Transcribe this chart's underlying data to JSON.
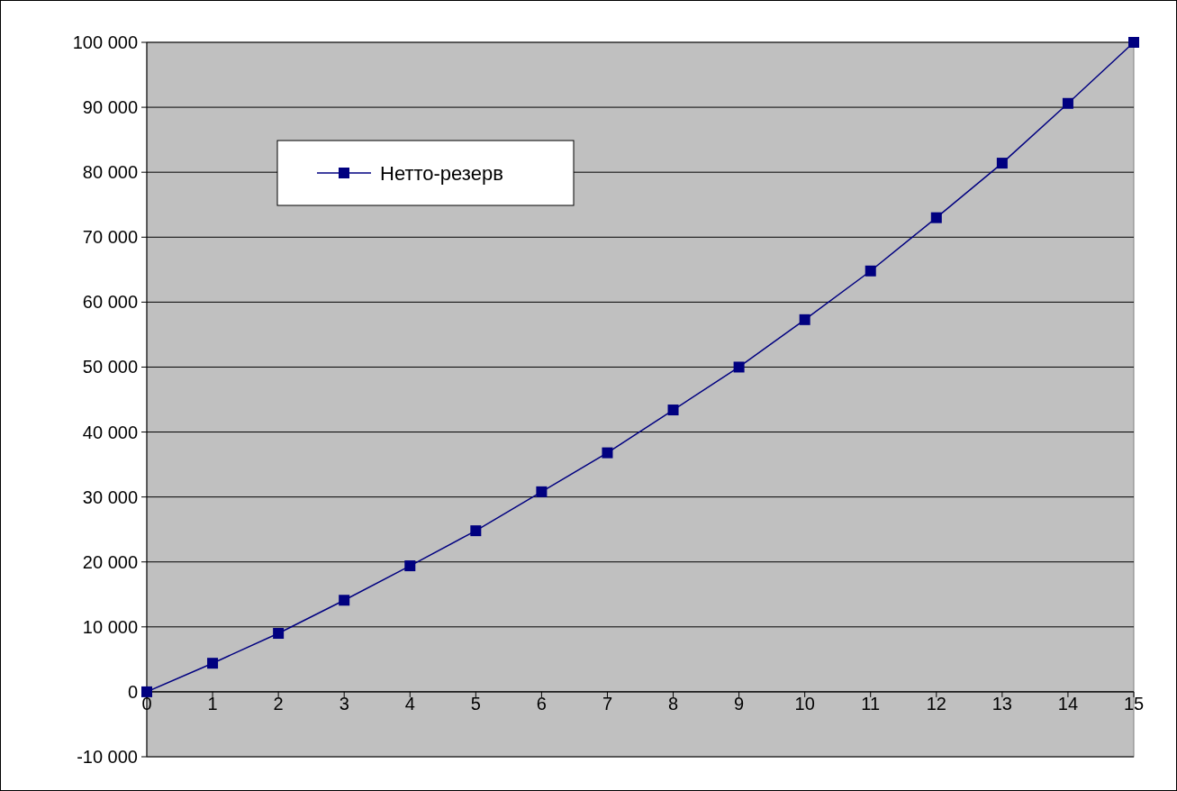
{
  "chart_data": {
    "type": "line",
    "x": [
      0,
      1,
      2,
      3,
      4,
      5,
      6,
      7,
      8,
      9,
      10,
      11,
      12,
      13,
      14,
      15
    ],
    "series": [
      {
        "name": "Нетто-резерв",
        "color": "#000080",
        "values": [
          0,
          4400,
          9000,
          14100,
          19400,
          24800,
          30800,
          36800,
          43400,
          50000,
          57300,
          64800,
          73000,
          81400,
          90600,
          100000
        ]
      }
    ],
    "xlim": [
      0,
      15
    ],
    "xticks": [
      0,
      1,
      2,
      3,
      4,
      5,
      6,
      7,
      8,
      9,
      10,
      11,
      12,
      13,
      14,
      15
    ],
    "ylim": [
      -10000,
      100000
    ],
    "yticks": [
      {
        "value": -10000,
        "label": "-10 000"
      },
      {
        "value": 0,
        "label": "0"
      },
      {
        "value": 10000,
        "label": "10 000"
      },
      {
        "value": 20000,
        "label": "20 000"
      },
      {
        "value": 30000,
        "label": "30 000"
      },
      {
        "value": 40000,
        "label": "40 000"
      },
      {
        "value": 50000,
        "label": "50 000"
      },
      {
        "value": 60000,
        "label": "60 000"
      },
      {
        "value": 70000,
        "label": "70 000"
      },
      {
        "value": 80000,
        "label": "80 000"
      },
      {
        "value": 90000,
        "label": "90 000"
      },
      {
        "value": 100000,
        "label": "100 000"
      }
    ],
    "grid": "y",
    "legend": "top left",
    "marker": "square",
    "line_style": "solid"
  }
}
